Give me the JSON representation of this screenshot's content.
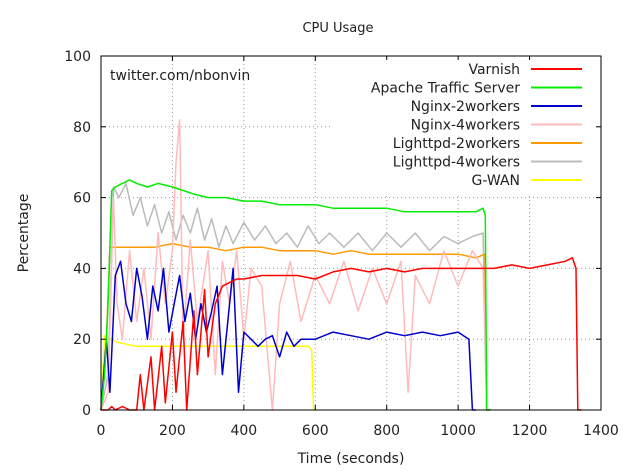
{
  "chart_data": {
    "type": "line",
    "title": "CPU Usage",
    "annotation": "twitter.com/nbonvin",
    "xlabel": "Time (seconds)",
    "ylabel": "Percentage",
    "xlim": [
      0,
      1400
    ],
    "ylim": [
      0,
      100
    ],
    "xticks": [
      0,
      200,
      400,
      600,
      800,
      1000,
      1200,
      1400
    ],
    "yticks": [
      0,
      20,
      40,
      60,
      80,
      100
    ],
    "grid": true,
    "legend_position": "top-right",
    "series": [
      {
        "name": "Varnish",
        "color": "#ff0000",
        "points": [
          [
            0,
            0
          ],
          [
            20,
            0
          ],
          [
            30,
            1
          ],
          [
            40,
            0
          ],
          [
            60,
            1
          ],
          [
            80,
            0
          ],
          [
            100,
            0
          ],
          [
            110,
            10
          ],
          [
            120,
            0
          ],
          [
            140,
            15
          ],
          [
            150,
            0
          ],
          [
            170,
            18
          ],
          [
            180,
            2
          ],
          [
            200,
            22
          ],
          [
            210,
            5
          ],
          [
            230,
            25
          ],
          [
            240,
            0
          ],
          [
            260,
            28
          ],
          [
            270,
            10
          ],
          [
            290,
            34
          ],
          [
            300,
            15
          ],
          [
            320,
            30
          ],
          [
            340,
            35
          ],
          [
            360,
            36
          ],
          [
            380,
            37
          ],
          [
            400,
            37
          ],
          [
            450,
            38
          ],
          [
            500,
            38
          ],
          [
            550,
            38
          ],
          [
            600,
            37
          ],
          [
            650,
            39
          ],
          [
            700,
            40
          ],
          [
            750,
            39
          ],
          [
            800,
            40
          ],
          [
            850,
            39
          ],
          [
            900,
            40
          ],
          [
            950,
            40
          ],
          [
            1000,
            40
          ],
          [
            1050,
            40
          ],
          [
            1080,
            40
          ],
          [
            1100,
            40
          ],
          [
            1150,
            41
          ],
          [
            1200,
            40
          ],
          [
            1250,
            41
          ],
          [
            1300,
            42
          ],
          [
            1320,
            43
          ],
          [
            1330,
            40
          ],
          [
            1335,
            0
          ],
          [
            1345,
            0
          ]
        ]
      },
      {
        "name": "Apache Traffic Server",
        "color": "#00ee00",
        "points": [
          [
            0,
            0
          ],
          [
            10,
            10
          ],
          [
            20,
            30
          ],
          [
            30,
            62
          ],
          [
            40,
            63
          ],
          [
            60,
            64
          ],
          [
            80,
            65
          ],
          [
            100,
            64
          ],
          [
            130,
            63
          ],
          [
            160,
            64
          ],
          [
            200,
            63
          ],
          [
            230,
            62
          ],
          [
            260,
            61
          ],
          [
            300,
            60
          ],
          [
            350,
            60
          ],
          [
            400,
            59
          ],
          [
            450,
            59
          ],
          [
            500,
            58
          ],
          [
            550,
            58
          ],
          [
            600,
            58
          ],
          [
            650,
            57
          ],
          [
            700,
            57
          ],
          [
            750,
            57
          ],
          [
            800,
            57
          ],
          [
            850,
            56
          ],
          [
            900,
            56
          ],
          [
            950,
            56
          ],
          [
            1000,
            56
          ],
          [
            1050,
            56
          ],
          [
            1070,
            57
          ],
          [
            1076,
            55
          ],
          [
            1080,
            0
          ],
          [
            1090,
            0
          ]
        ]
      },
      {
        "name": "Nginx-2workers",
        "color": "#0000cc",
        "points": [
          [
            0,
            0
          ],
          [
            15,
            20
          ],
          [
            25,
            5
          ],
          [
            40,
            38
          ],
          [
            55,
            42
          ],
          [
            70,
            30
          ],
          [
            85,
            25
          ],
          [
            100,
            40
          ],
          [
            115,
            32
          ],
          [
            130,
            20
          ],
          [
            145,
            35
          ],
          [
            160,
            28
          ],
          [
            175,
            40
          ],
          [
            190,
            22
          ],
          [
            205,
            30
          ],
          [
            220,
            38
          ],
          [
            235,
            25
          ],
          [
            250,
            33
          ],
          [
            265,
            20
          ],
          [
            280,
            30
          ],
          [
            295,
            22
          ],
          [
            310,
            28
          ],
          [
            325,
            35
          ],
          [
            340,
            10
          ],
          [
            355,
            25
          ],
          [
            370,
            40
          ],
          [
            385,
            5
          ],
          [
            400,
            22
          ],
          [
            420,
            20
          ],
          [
            440,
            18
          ],
          [
            460,
            20
          ],
          [
            480,
            21
          ],
          [
            500,
            15
          ],
          [
            520,
            22
          ],
          [
            540,
            18
          ],
          [
            560,
            20
          ],
          [
            600,
            20
          ],
          [
            650,
            22
          ],
          [
            700,
            21
          ],
          [
            750,
            20
          ],
          [
            800,
            22
          ],
          [
            850,
            21
          ],
          [
            900,
            22
          ],
          [
            950,
            21
          ],
          [
            1000,
            22
          ],
          [
            1030,
            20
          ],
          [
            1040,
            0
          ],
          [
            1050,
            0
          ]
        ]
      },
      {
        "name": "Nginx-4workers",
        "color": "#ffbbbb",
        "points": [
          [
            0,
            0
          ],
          [
            20,
            5
          ],
          [
            35,
            60
          ],
          [
            45,
            30
          ],
          [
            60,
            20
          ],
          [
            80,
            45
          ],
          [
            100,
            25
          ],
          [
            120,
            40
          ],
          [
            140,
            20
          ],
          [
            160,
            50
          ],
          [
            180,
            30
          ],
          [
            200,
            45
          ],
          [
            210,
            70
          ],
          [
            220,
            82
          ],
          [
            230,
            20
          ],
          [
            250,
            48
          ],
          [
            270,
            25
          ],
          [
            300,
            45
          ],
          [
            320,
            10
          ],
          [
            340,
            42
          ],
          [
            360,
            30
          ],
          [
            380,
            45
          ],
          [
            400,
            20
          ],
          [
            420,
            40
          ],
          [
            450,
            35
          ],
          [
            480,
            0
          ],
          [
            500,
            30
          ],
          [
            530,
            42
          ],
          [
            560,
            25
          ],
          [
            600,
            38
          ],
          [
            640,
            30
          ],
          [
            680,
            42
          ],
          [
            720,
            28
          ],
          [
            760,
            40
          ],
          [
            800,
            30
          ],
          [
            840,
            42
          ],
          [
            860,
            5
          ],
          [
            880,
            38
          ],
          [
            920,
            30
          ],
          [
            960,
            45
          ],
          [
            1000,
            35
          ],
          [
            1040,
            45
          ],
          [
            1070,
            40
          ],
          [
            1080,
            0
          ],
          [
            1090,
            0
          ]
        ]
      },
      {
        "name": "Lighttpd-2workers",
        "color": "#ff9900",
        "points": [
          [
            0,
            0
          ],
          [
            15,
            20
          ],
          [
            25,
            46
          ],
          [
            50,
            46
          ],
          [
            100,
            46
          ],
          [
            150,
            46
          ],
          [
            200,
            47
          ],
          [
            250,
            46
          ],
          [
            300,
            46
          ],
          [
            350,
            45
          ],
          [
            400,
            46
          ],
          [
            450,
            46
          ],
          [
            500,
            45
          ],
          [
            550,
            45
          ],
          [
            600,
            45
          ],
          [
            650,
            44
          ],
          [
            700,
            45
          ],
          [
            750,
            44
          ],
          [
            800,
            44
          ],
          [
            850,
            44
          ],
          [
            900,
            44
          ],
          [
            950,
            44
          ],
          [
            1000,
            44
          ],
          [
            1050,
            43
          ],
          [
            1075,
            44
          ],
          [
            1080,
            0
          ],
          [
            1090,
            0
          ]
        ]
      },
      {
        "name": "Lighttpd-4workers",
        "color": "#bbbbbb",
        "points": [
          [
            0,
            0
          ],
          [
            20,
            10
          ],
          [
            35,
            63
          ],
          [
            50,
            60
          ],
          [
            70,
            64
          ],
          [
            90,
            55
          ],
          [
            110,
            60
          ],
          [
            130,
            52
          ],
          [
            150,
            58
          ],
          [
            170,
            50
          ],
          [
            190,
            56
          ],
          [
            210,
            48
          ],
          [
            230,
            55
          ],
          [
            250,
            50
          ],
          [
            270,
            57
          ],
          [
            290,
            48
          ],
          [
            310,
            54
          ],
          [
            330,
            46
          ],
          [
            350,
            52
          ],
          [
            370,
            47
          ],
          [
            400,
            53
          ],
          [
            430,
            48
          ],
          [
            460,
            52
          ],
          [
            490,
            47
          ],
          [
            520,
            50
          ],
          [
            550,
            46
          ],
          [
            580,
            52
          ],
          [
            610,
            47
          ],
          [
            640,
            50
          ],
          [
            680,
            46
          ],
          [
            720,
            50
          ],
          [
            760,
            45
          ],
          [
            800,
            50
          ],
          [
            840,
            46
          ],
          [
            880,
            50
          ],
          [
            920,
            45
          ],
          [
            960,
            49
          ],
          [
            1000,
            47
          ],
          [
            1040,
            49
          ],
          [
            1070,
            50
          ],
          [
            1080,
            0
          ],
          [
            1090,
            0
          ]
        ]
      },
      {
        "name": "G-WAN",
        "color": "#ffff00",
        "points": [
          [
            0,
            0
          ],
          [
            10,
            21
          ],
          [
            25,
            20
          ],
          [
            50,
            19
          ],
          [
            100,
            18
          ],
          [
            150,
            18
          ],
          [
            200,
            18
          ],
          [
            250,
            18
          ],
          [
            300,
            18
          ],
          [
            350,
            18
          ],
          [
            400,
            18
          ],
          [
            450,
            18
          ],
          [
            500,
            18
          ],
          [
            550,
            18
          ],
          [
            580,
            18
          ],
          [
            590,
            17
          ],
          [
            595,
            0
          ],
          [
            600,
            0
          ]
        ]
      }
    ]
  }
}
